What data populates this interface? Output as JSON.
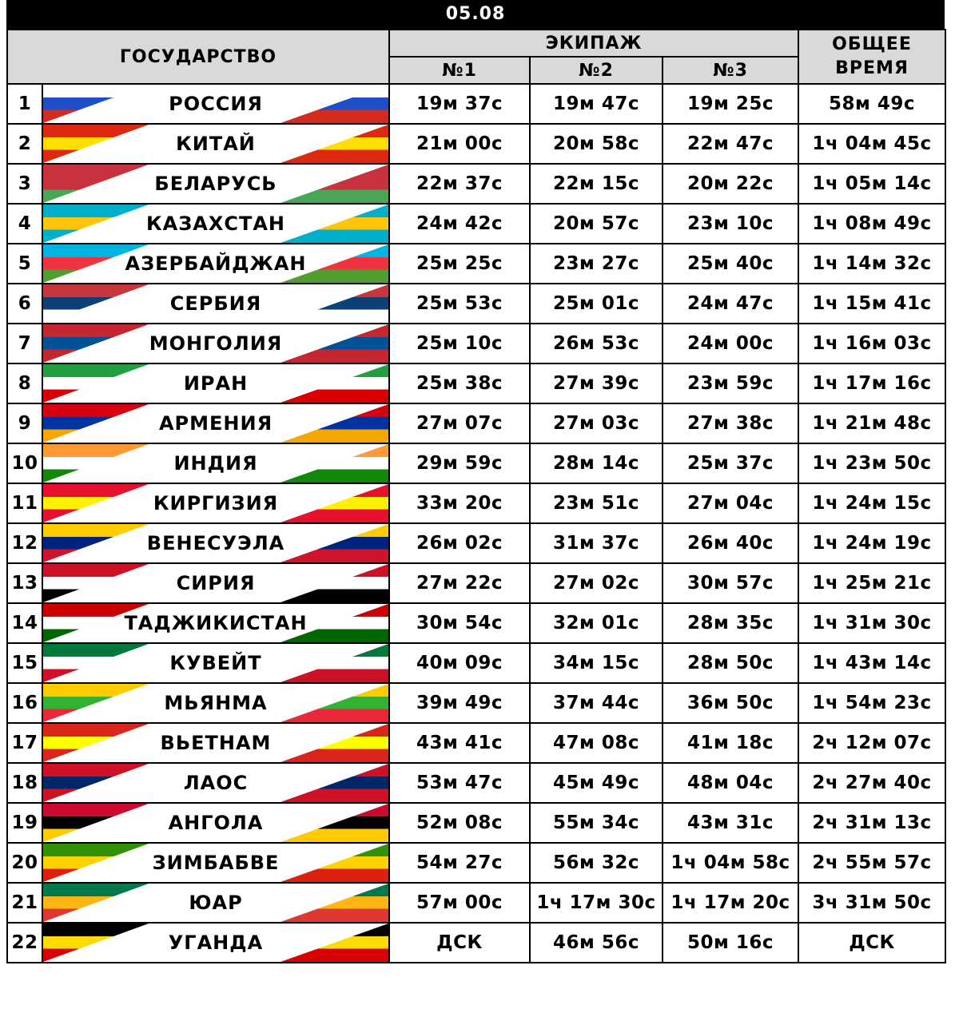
{
  "date": "05.08",
  "headers": {
    "country": "ГОСУДАРСТВО",
    "crew": "ЭКИПАЖ",
    "crew1": "№1",
    "crew2": "№2",
    "crew3": "№3",
    "total": "ОБЩЕЕ ВРЕМЯ"
  },
  "rows": [
    {
      "n": "1",
      "country": "РОССИЯ",
      "c1": "19м 37с",
      "c2": "19м 47с",
      "c3": "19м 25с",
      "total": "58м 49с",
      "colors": [
        "#ffffff",
        "#1f4ec9",
        "#d52b1e"
      ]
    },
    {
      "n": "2",
      "country": "КИТАЙ",
      "c1": "21м 00с",
      "c2": "20м 58с",
      "c3": "22м 47с",
      "total": "1ч 04м 45с",
      "colors": [
        "#de2910",
        "#ffde00",
        "#de2910"
      ]
    },
    {
      "n": "3",
      "country": "БЕЛАРУСЬ",
      "c1": "22м 37с",
      "c2": "22м 15с",
      "c3": "20м 22с",
      "total": "1ч 05м 14с",
      "colors": [
        "#c8313e",
        "#c8313e",
        "#4aa657"
      ]
    },
    {
      "n": "4",
      "country": "КАЗАХСТАН",
      "c1": "24м 42с",
      "c2": "20м 57с",
      "c3": "23м 10с",
      "total": "1ч 08м 49с",
      "colors": [
        "#00afca",
        "#fec50c",
        "#00afca"
      ]
    },
    {
      "n": "5",
      "country": "АЗЕРБАЙДЖАН",
      "c1": "25м 25с",
      "c2": "23м 27с",
      "c3": "25м 40с",
      "total": "1ч 14м 32с",
      "colors": [
        "#00b5e2",
        "#ef3340",
        "#509e2f"
      ]
    },
    {
      "n": "6",
      "country": "СЕРБИЯ",
      "c1": "25м 53с",
      "c2": "25м 01с",
      "c3": "24м 47с",
      "total": "1ч 15м 41с",
      "colors": [
        "#c6363c",
        "#0c4076",
        "#ffffff"
      ]
    },
    {
      "n": "7",
      "country": "МОНГОЛИЯ",
      "c1": "25м 10с",
      "c2": "26м 53с",
      "c3": "24м 00с",
      "total": "1ч 16м 03с",
      "colors": [
        "#c4272f",
        "#015197",
        "#c4272f"
      ]
    },
    {
      "n": "8",
      "country": "ИРАН",
      "c1": "25м 38с",
      "c2": "27м 39с",
      "c3": "23м 59с",
      "total": "1ч 17м 16с",
      "colors": [
        "#239f40",
        "#ffffff",
        "#da0000"
      ]
    },
    {
      "n": "9",
      "country": "АРМЕНИЯ",
      "c1": "27м 07с",
      "c2": "27м 03с",
      "c3": "27м 38с",
      "total": "1ч 21м 48с",
      "colors": [
        "#d90012",
        "#0033a0",
        "#f2a800"
      ]
    },
    {
      "n": "10",
      "country": "ИНДИЯ",
      "c1": "29м 59с",
      "c2": "28м 14с",
      "c3": "25м 37с",
      "total": "1ч 23м 50с",
      "colors": [
        "#ff9933",
        "#ffffff",
        "#138808"
      ]
    },
    {
      "n": "11",
      "country": "КИРГИЗИЯ",
      "c1": "33м 20с",
      "c2": "23м 51с",
      "c3": "27м 04с",
      "total": "1ч 24м 15с",
      "colors": [
        "#e8112d",
        "#ffef00",
        "#e8112d"
      ]
    },
    {
      "n": "12",
      "country": "ВЕНЕСУЭЛА",
      "c1": "26м 02с",
      "c2": "31м 37с",
      "c3": "26м 40с",
      "total": "1ч 24м 19с",
      "colors": [
        "#ffcc00",
        "#00247d",
        "#cf142b"
      ]
    },
    {
      "n": "13",
      "country": "СИРИЯ",
      "c1": "27м 22с",
      "c2": "27м 02с",
      "c3": "30м 57с",
      "total": "1ч 25м 21с",
      "colors": [
        "#ce1126",
        "#ffffff",
        "#000000"
      ]
    },
    {
      "n": "14",
      "country": "ТАДЖИКИСТАН",
      "c1": "30м 54с",
      "c2": "32м 01с",
      "c3": "28м 35с",
      "total": "1ч 31м 30с",
      "colors": [
        "#cc0000",
        "#ffffff",
        "#006600"
      ]
    },
    {
      "n": "15",
      "country": "КУВЕЙТ",
      "c1": "40м 09с",
      "c2": "34м 15с",
      "c3": "28м 50с",
      "total": "1ч 43м 14с",
      "colors": [
        "#007a3d",
        "#ffffff",
        "#ce1126"
      ]
    },
    {
      "n": "16",
      "country": "МЬЯНМА",
      "c1": "39м 49с",
      "c2": "37м 44с",
      "c3": "36м 50с",
      "total": "1ч 54м 23с",
      "colors": [
        "#fecb00",
        "#34b233",
        "#ea2839"
      ]
    },
    {
      "n": "17",
      "country": "ВЬЕТНАМ",
      "c1": "43м 41с",
      "c2": "47м 08с",
      "c3": "41м 18с",
      "total": "2ч 12м 07с",
      "colors": [
        "#da251d",
        "#ffff00",
        "#da251d"
      ]
    },
    {
      "n": "18",
      "country": "ЛАОС",
      "c1": "53м 47с",
      "c2": "45м 49с",
      "c3": "48м 04с",
      "total": "2ч 27м 40с",
      "colors": [
        "#ce1126",
        "#002868",
        "#ce1126"
      ]
    },
    {
      "n": "19",
      "country": "АНГОЛА",
      "c1": "52м 08с",
      "c2": "55м 34с",
      "c3": "43м 31с",
      "total": "2ч 31м 13с",
      "colors": [
        "#cc092f",
        "#000000",
        "#ffcb00"
      ]
    },
    {
      "n": "20",
      "country": "ЗИМБАБВЕ",
      "c1": "54м 27с",
      "c2": "56м 32с",
      "c3": "1ч 04м 58с",
      "total": "2ч 55м 57с",
      "colors": [
        "#319208",
        "#ffd200",
        "#de2010"
      ]
    },
    {
      "n": "21",
      "country": "ЮАР",
      "c1": "57м 00с",
      "c2": "1ч 17м 30с",
      "c3": "1ч 17м 20с",
      "total": "3ч 31м 50с",
      "colors": [
        "#007a4d",
        "#ffb612",
        "#de3831"
      ]
    },
    {
      "n": "22",
      "country": "УГАНДА",
      "c1": "ДСК",
      "c2": "46м 56с",
      "c3": "50м 16с",
      "total": "ДСК",
      "colors": [
        "#000000",
        "#fcdc04",
        "#d90000"
      ]
    }
  ]
}
